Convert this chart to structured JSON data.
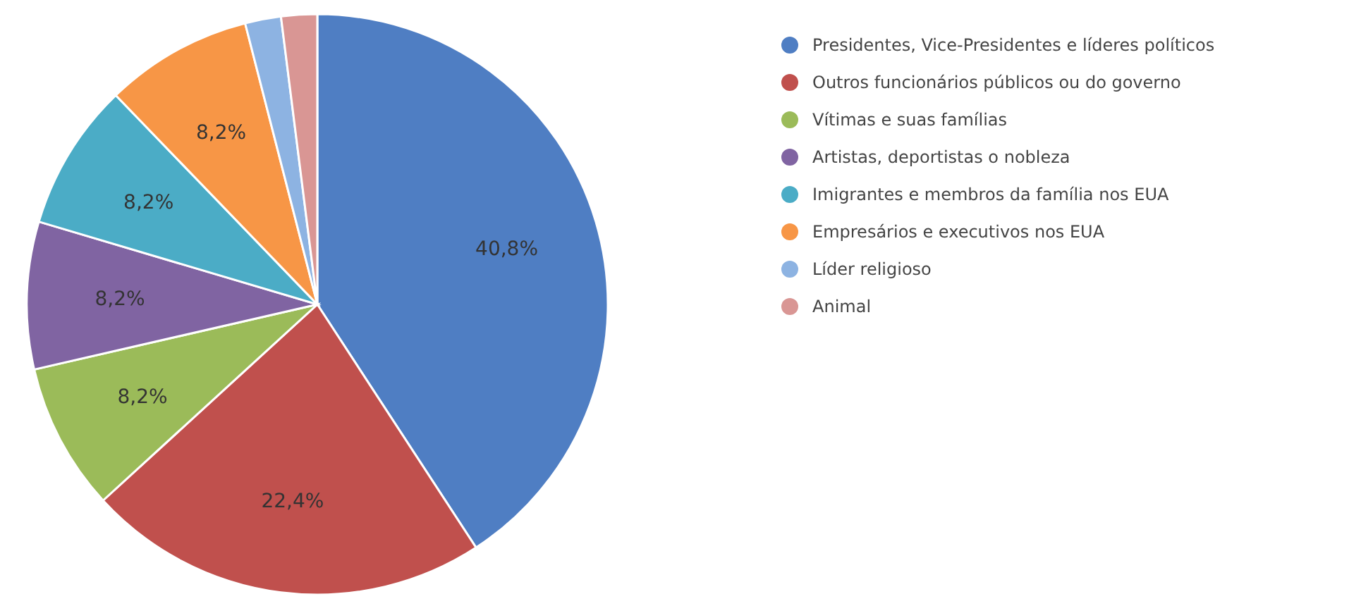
{
  "chart_data": {
    "type": "pie",
    "categories": [
      "Presidentes, Vice-Presidentes e líderes políticos",
      "Outros funcionários públicos ou do governo",
      "Vítimas e suas famílias",
      "Artistas, deportistas o nobleza",
      "Imigrantes e membros da família nos EUA",
      "Empresários e executivos nos EUA",
      "Líder religioso",
      "Animal"
    ],
    "values": [
      40.8,
      22.4,
      8.2,
      8.2,
      8.2,
      8.2,
      2.0,
      2.0
    ],
    "value_labels": [
      "40,8%",
      "22,4%",
      "8,2%",
      "8,2%",
      "8,2%",
      "8,2%",
      null,
      null
    ],
    "colors": [
      "#4f7ec3",
      "#c0504d",
      "#9bbb59",
      "#8064a2",
      "#4bacc6",
      "#f79646",
      "#8db3e2",
      "#d99694"
    ],
    "legend": "right"
  }
}
